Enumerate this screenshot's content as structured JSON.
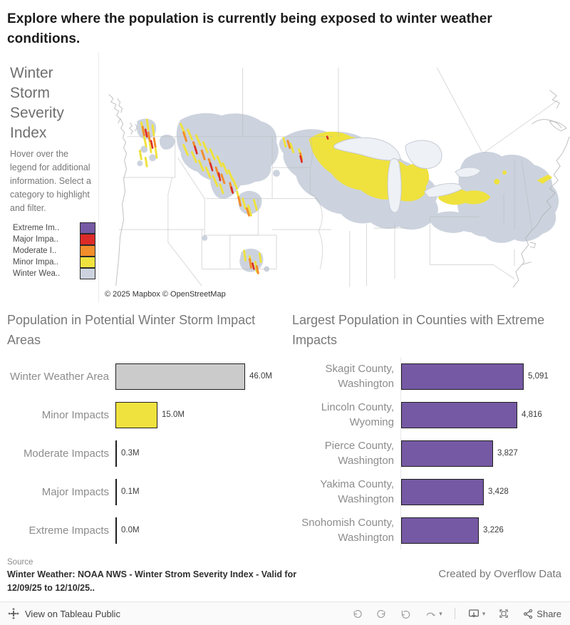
{
  "page": {
    "title": "Explore where the population is currently being exposed to winter weather conditions."
  },
  "map_panel": {
    "legend_title": "Winter Storm Severity Index",
    "legend_help": "Hover over the legend for additional information. Select a category to highlight and filter.",
    "legend_items": [
      {
        "label": "Extreme Im..",
        "color": "#7559a4"
      },
      {
        "label": "Major Impa..",
        "color": "#dc2b28"
      },
      {
        "label": "Moderate I..",
        "color": "#f28e2b"
      },
      {
        "label": "Minor Impa..",
        "color": "#efe23e"
      },
      {
        "label": "Winter Wea..",
        "color": "#ccd3de"
      }
    ],
    "attribution": "© 2025 Mapbox © OpenStreetMap"
  },
  "chart_data": [
    {
      "type": "bar",
      "orientation": "horizontal",
      "title": "Population in Potential Winter Storm Impact Areas",
      "categories": [
        "Winter Weather Area",
        "Minor Impacts",
        "Moderate Impacts",
        "Major Impacts",
        "Extreme Impacts"
      ],
      "values": [
        46.0,
        15.0,
        0.3,
        0.1,
        0.0
      ],
      "value_labels": [
        "46.0M",
        "15.0M",
        "0.3M",
        "0.1M",
        "0.0M"
      ],
      "unit": "millions of people",
      "bar_colors": [
        "#cbcbcb",
        "#efe23e",
        "#f28e2b",
        "#dc2b28",
        "#7559a4"
      ],
      "xlim": [
        0,
        46
      ],
      "grid": false,
      "legend": "none"
    },
    {
      "type": "bar",
      "orientation": "horizontal",
      "title": "Largest Population in Counties with Extreme Impacts",
      "categories": [
        "Skagit County, Washington",
        "Lincoln County, Wyoming",
        "Pierce County, Washington",
        "Yakima County, Washington",
        "Snohomish County, Washington"
      ],
      "values": [
        5091,
        4816,
        3827,
        3428,
        3226
      ],
      "value_labels": [
        "5,091",
        "4,816",
        "3,827",
        "3,428",
        "3,226"
      ],
      "unit": "people",
      "bar_colors": [
        "#7559a4",
        "#7559a4",
        "#7559a4",
        "#7559a4",
        "#7559a4"
      ],
      "xlim": [
        0,
        5091
      ],
      "grid": false,
      "legend": "none"
    }
  ],
  "source": {
    "label": "Source",
    "text": "Winter Weather: NOAA NWS - Winter Strom Severity Index - Valid for 12/09/25 to  12/10/25..",
    "credit": "Created by Overflow Data"
  },
  "footer": {
    "view_label": "View on Tableau Public",
    "share_label": "Share"
  }
}
